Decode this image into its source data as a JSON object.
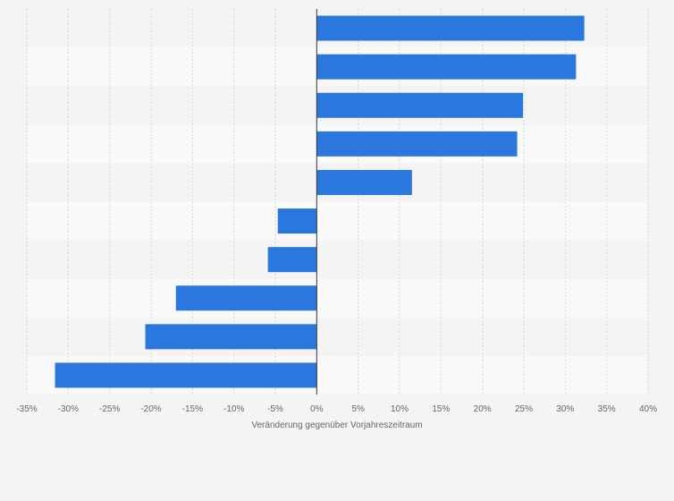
{
  "chart_data": {
    "type": "bar",
    "orientation": "horizontal",
    "categories": [
      "",
      "",
      "",
      "",
      "",
      "",
      "",
      "",
      "",
      ""
    ],
    "values": [
      32.3,
      31.3,
      24.9,
      24.2,
      11.5,
      -4.7,
      -5.9,
      -17.0,
      -20.7,
      -31.6
    ],
    "xlim": [
      -35,
      40
    ],
    "x_ticks": [
      -35,
      -30,
      -25,
      -20,
      -15,
      -10,
      -5,
      0,
      5,
      10,
      15,
      20,
      25,
      30,
      35,
      40
    ],
    "tick_labels": [
      "-35%",
      "-30%",
      "-25%",
      "-20%",
      "-15%",
      "-10%",
      "-5%",
      "0%",
      "5%",
      "10%",
      "15%",
      "20%",
      "25%",
      "30%",
      "35%",
      "40%"
    ],
    "xlabel": "Veränderung gegenüber Vorjahreszeitraum",
    "ylabel": "",
    "grid": "vertical",
    "bar_color": "#2a78de",
    "band_colors": [
      "#f4f4f4",
      "#f9f9f9"
    ]
  }
}
